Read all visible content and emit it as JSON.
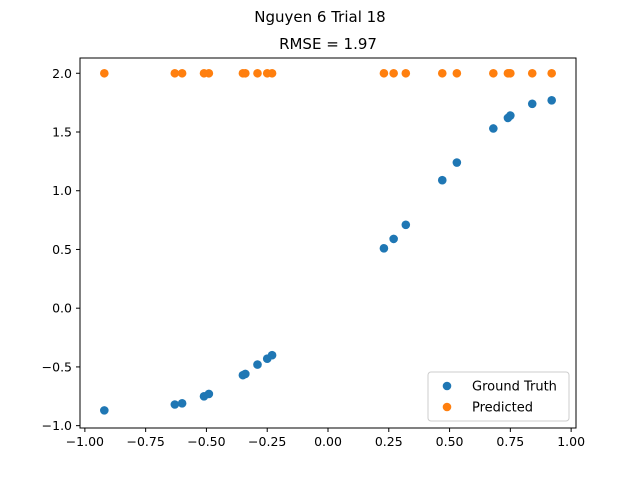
{
  "chart_data": {
    "type": "scatter",
    "suptitle": "Nguyen 6 Trial 18",
    "title": "RMSE = 1.97",
    "xlabel": "",
    "ylabel": "",
    "xlim": [
      -1.02,
      1.02
    ],
    "ylim": [
      -1.02,
      2.13
    ],
    "xticks": [
      -1.0,
      -0.75,
      -0.5,
      -0.25,
      0.0,
      0.25,
      0.5,
      0.75,
      1.0
    ],
    "xtick_labels": [
      "−1.00",
      "−0.75",
      "−0.50",
      "−0.25",
      "0.00",
      "0.25",
      "0.50",
      "0.75",
      "1.00"
    ],
    "yticks": [
      -1.0,
      -0.5,
      0.0,
      0.5,
      1.0,
      1.5,
      2.0
    ],
    "ytick_labels": [
      "−1.0",
      "−0.5",
      "0.0",
      "0.5",
      "1.0",
      "1.5",
      "2.0"
    ],
    "grid": false,
    "legend_position": "lower-right",
    "series": [
      {
        "name": "Ground Truth",
        "color": "#1f77b4",
        "x": [
          -0.92,
          -0.63,
          -0.6,
          -0.51,
          -0.49,
          -0.35,
          -0.34,
          -0.29,
          -0.25,
          -0.23,
          0.23,
          0.27,
          0.32,
          0.47,
          0.53,
          0.68,
          0.74,
          0.75,
          0.84,
          0.92
        ],
        "y": [
          -0.87,
          -0.82,
          -0.81,
          -0.75,
          -0.73,
          -0.57,
          -0.56,
          -0.48,
          -0.43,
          -0.4,
          0.51,
          0.59,
          0.71,
          1.09,
          1.24,
          1.53,
          1.62,
          1.64,
          1.74,
          1.77
        ]
      },
      {
        "name": "Predicted",
        "color": "#ff7f0e",
        "x": [
          -0.92,
          -0.63,
          -0.6,
          -0.51,
          -0.49,
          -0.35,
          -0.34,
          -0.29,
          -0.25,
          -0.23,
          0.23,
          0.27,
          0.32,
          0.47,
          0.53,
          0.68,
          0.74,
          0.75,
          0.84,
          0.92
        ],
        "y": [
          2.0,
          2.0,
          2.0,
          2.0,
          2.0,
          2.0,
          2.0,
          2.0,
          2.0,
          2.0,
          2.0,
          2.0,
          2.0,
          2.0,
          2.0,
          2.0,
          2.0,
          2.0,
          2.0,
          2.0
        ]
      }
    ]
  }
}
